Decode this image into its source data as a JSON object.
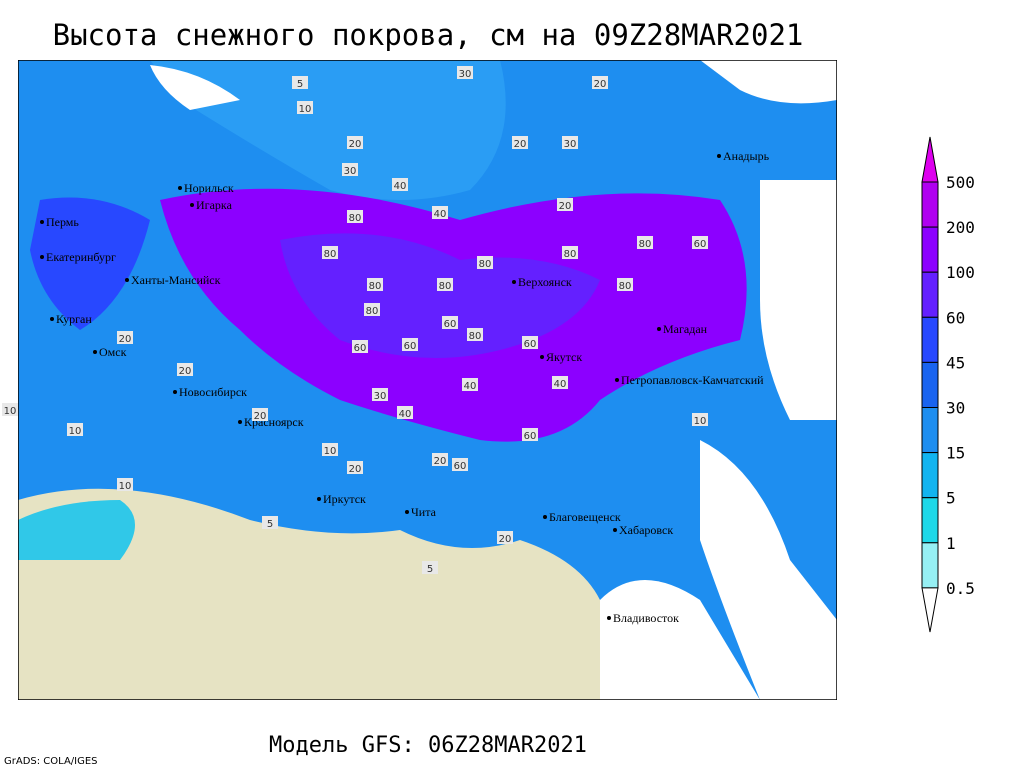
{
  "title": "Высота снежного покрова, см на 09Z28MAR2021",
  "footer": "Модель GFS: 06Z28MAR2021",
  "credit": "GrADS: COLA/IGES",
  "cities": [
    "Норильск",
    "Игарка",
    "Пермь",
    "Екатеринбург",
    "Ханты-Мансийск",
    "Курган",
    "Омск",
    "Новосибирск",
    "Красноярск",
    "Иркутск",
    "Чита",
    "Верхоянск",
    "Якутск",
    "Магадан",
    "Анадырь",
    "Петропавловск-Камчатский",
    "Благовещенск",
    "Хабаровск",
    "Владивосток"
  ],
  "contour_labels": [
    30,
    20,
    20,
    10,
    5,
    80,
    20,
    30,
    40,
    20,
    40,
    30,
    80,
    60,
    80,
    80,
    80,
    80,
    80,
    60,
    60,
    80,
    80,
    80,
    60,
    40,
    40,
    60,
    60,
    30,
    20,
    10,
    10,
    20,
    40,
    60,
    20,
    20,
    5,
    10,
    10,
    20,
    20,
    5,
    10
  ],
  "legend": {
    "levels": [
      500,
      200,
      100,
      60,
      45,
      30,
      15,
      5,
      1,
      0.5
    ],
    "colors": [
      "#dd00ee",
      "#b000f0",
      "#8c00ff",
      "#6420ff",
      "#2848ff",
      "#1a64f0",
      "#1e8ef0",
      "#12b4f0",
      "#1ed8e8",
      "#96f0f4",
      "#ffffff"
    ]
  }
}
